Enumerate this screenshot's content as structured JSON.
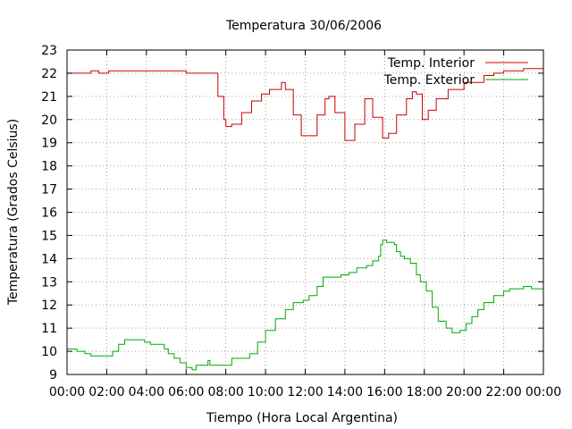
{
  "chart_data": {
    "type": "line",
    "title": "Temperatura 30/06/2006",
    "xlabel": "Tiempo (Hora Local Argentina)",
    "ylabel": "Temperatura (Grados Celsius)",
    "xlim": [
      0,
      24
    ],
    "ylim": [
      9,
      23
    ],
    "x_ticks": [
      "00:00",
      "02:00",
      "04:00",
      "06:00",
      "08:00",
      "10:00",
      "12:00",
      "14:00",
      "16:00",
      "18:00",
      "20:00",
      "22:00",
      "00:00"
    ],
    "y_ticks": [
      "9",
      "10",
      "11",
      "12",
      "13",
      "14",
      "15",
      "16",
      "17",
      "18",
      "19",
      "20",
      "21",
      "22",
      "23"
    ],
    "grid": true,
    "legend_position": "top-right",
    "step": true,
    "series": [
      {
        "name": "Temp. Interior",
        "color": "#cc0000",
        "points": [
          [
            0,
            22.0
          ],
          [
            1.2,
            22.1
          ],
          [
            1.6,
            22.0
          ],
          [
            2.1,
            22.1
          ],
          [
            2.5,
            22.1
          ],
          [
            5.9,
            22.1
          ],
          [
            6.0,
            22.0
          ],
          [
            7.4,
            22.0
          ],
          [
            7.6,
            21.0
          ],
          [
            7.9,
            20.0
          ],
          [
            8.0,
            19.7
          ],
          [
            8.3,
            19.8
          ],
          [
            8.8,
            20.3
          ],
          [
            9.3,
            20.8
          ],
          [
            9.8,
            21.1
          ],
          [
            10.2,
            21.3
          ],
          [
            10.8,
            21.6
          ],
          [
            11.0,
            21.3
          ],
          [
            11.4,
            20.2
          ],
          [
            11.8,
            19.3
          ],
          [
            12.1,
            19.3
          ],
          [
            12.6,
            20.2
          ],
          [
            13.0,
            20.9
          ],
          [
            13.2,
            21.0
          ],
          [
            13.5,
            20.3
          ],
          [
            14.0,
            19.1
          ],
          [
            14.5,
            19.8
          ],
          [
            15.0,
            20.9
          ],
          [
            15.4,
            20.1
          ],
          [
            15.9,
            19.2
          ],
          [
            16.2,
            19.4
          ],
          [
            16.6,
            20.2
          ],
          [
            17.1,
            20.9
          ],
          [
            17.4,
            21.2
          ],
          [
            17.6,
            21.1
          ],
          [
            17.9,
            20.0
          ],
          [
            18.2,
            20.4
          ],
          [
            18.6,
            20.9
          ],
          [
            19.2,
            21.3
          ],
          [
            20.0,
            21.6
          ],
          [
            21.0,
            21.9
          ],
          [
            21.5,
            22.0
          ],
          [
            22.0,
            22.1
          ],
          [
            22.8,
            22.1
          ],
          [
            23.0,
            22.2
          ],
          [
            24.0,
            22.2
          ]
        ]
      },
      {
        "name": "Temp. Exterior",
        "color": "#00aa00",
        "points": [
          [
            0,
            10.1
          ],
          [
            0.3,
            10.1
          ],
          [
            0.5,
            10.0
          ],
          [
            0.9,
            9.9
          ],
          [
            1.2,
            9.8
          ],
          [
            2.0,
            9.8
          ],
          [
            2.3,
            10.0
          ],
          [
            2.6,
            10.3
          ],
          [
            2.9,
            10.5
          ],
          [
            3.6,
            10.5
          ],
          [
            3.9,
            10.4
          ],
          [
            4.2,
            10.3
          ],
          [
            4.6,
            10.3
          ],
          [
            4.9,
            10.1
          ],
          [
            5.1,
            9.9
          ],
          [
            5.4,
            9.7
          ],
          [
            5.7,
            9.5
          ],
          [
            6.0,
            9.3
          ],
          [
            6.3,
            9.2
          ],
          [
            6.5,
            9.4
          ],
          [
            7.0,
            9.4
          ],
          [
            7.1,
            9.6
          ],
          [
            7.2,
            9.4
          ],
          [
            7.7,
            9.4
          ],
          [
            8.2,
            9.4
          ],
          [
            8.3,
            9.7
          ],
          [
            8.8,
            9.7
          ],
          [
            9.2,
            9.9
          ],
          [
            9.6,
            10.4
          ],
          [
            10.0,
            10.9
          ],
          [
            10.5,
            11.4
          ],
          [
            11.0,
            11.8
          ],
          [
            11.4,
            12.1
          ],
          [
            11.9,
            12.2
          ],
          [
            12.2,
            12.4
          ],
          [
            12.6,
            12.8
          ],
          [
            12.9,
            13.2
          ],
          [
            13.8,
            13.3
          ],
          [
            14.2,
            13.4
          ],
          [
            14.6,
            13.6
          ],
          [
            15.1,
            13.7
          ],
          [
            15.4,
            13.9
          ],
          [
            15.7,
            14.1
          ],
          [
            15.8,
            14.6
          ],
          [
            15.9,
            14.8
          ],
          [
            16.1,
            14.7
          ],
          [
            16.3,
            14.7
          ],
          [
            16.5,
            14.6
          ],
          [
            16.6,
            14.3
          ],
          [
            16.8,
            14.1
          ],
          [
            17.0,
            14.0
          ],
          [
            17.3,
            13.8
          ],
          [
            17.6,
            13.3
          ],
          [
            17.8,
            13.0
          ],
          [
            18.1,
            12.6
          ],
          [
            18.4,
            11.9
          ],
          [
            18.7,
            11.3
          ],
          [
            19.1,
            11.0
          ],
          [
            19.4,
            10.8
          ],
          [
            19.8,
            10.9
          ],
          [
            20.1,
            11.2
          ],
          [
            20.4,
            11.5
          ],
          [
            20.7,
            11.8
          ],
          [
            21.0,
            12.1
          ],
          [
            21.5,
            12.4
          ],
          [
            22.0,
            12.6
          ],
          [
            22.3,
            12.7
          ],
          [
            23.0,
            12.8
          ],
          [
            23.4,
            12.7
          ],
          [
            24.0,
            12.8
          ]
        ]
      }
    ]
  }
}
